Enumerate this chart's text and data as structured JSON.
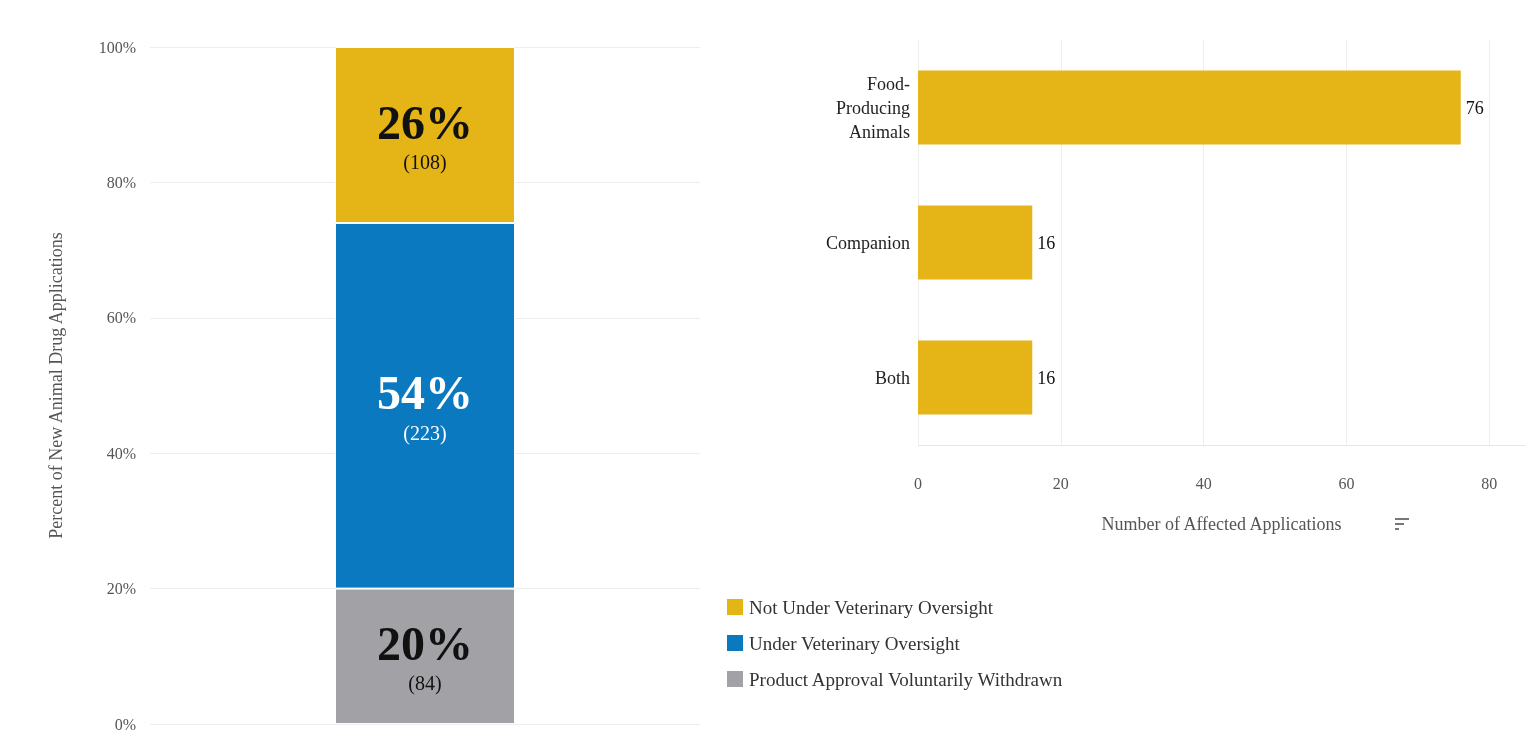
{
  "chart_data": [
    {
      "type": "bar",
      "stacked": true,
      "categories": [
        null
      ],
      "ylabel": "Percent of New Animal Drug Applications",
      "ylim": [
        0,
        100
      ],
      "yticks": [
        {
          "value": 0,
          "label": "0%"
        },
        {
          "value": 20,
          "label": "20%"
        },
        {
          "value": 40,
          "label": "40%"
        },
        {
          "value": 60,
          "label": "60%"
        },
        {
          "value": 80,
          "label": "80%"
        },
        {
          "value": 100,
          "label": "100%"
        }
      ],
      "grid": "y",
      "legend": "right",
      "series": [
        {
          "name": "Product Approval Voluntarily Withdrawn",
          "color": "#a2a2a6",
          "values": [
            20
          ],
          "value_labels": [
            "20%\n(84)"
          ]
        },
        {
          "name": "Under Veterinary Oversight",
          "color": "#0a79bf",
          "values": [
            54
          ],
          "value_labels": [
            "54%\n(223)"
          ]
        },
        {
          "name": "Not Under Veterinary Oversight",
          "color": "#e5b416",
          "values": [
            26
          ],
          "value_labels": [
            "26%\n(108)"
          ]
        }
      ]
    },
    {
      "type": "bar",
      "orientation": "horizontal",
      "categories": [
        "Food-\nProducing\nAnimals",
        "Companion",
        "Both"
      ],
      "values": [
        76,
        16,
        16
      ],
      "color": "#e5b416",
      "xlim": [
        0,
        85
      ],
      "xticks": [
        0,
        20,
        40,
        60,
        80
      ],
      "xlabel": "Number of Affected Applications",
      "grid": "x",
      "data_labels": true
    }
  ]
}
